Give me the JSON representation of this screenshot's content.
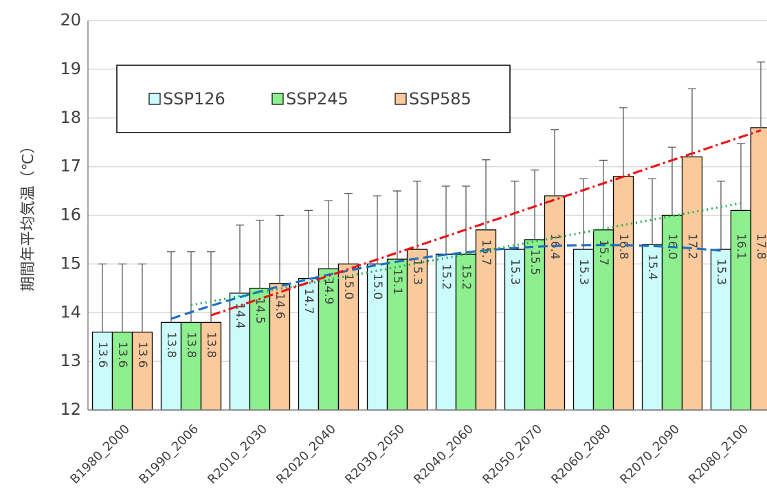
{
  "chart_data": {
    "type": "bar",
    "y_axis_label": "期間年平均気温（℃）",
    "categories": [
      "B1980_2000",
      "B1990_2006",
      "R2010_2030",
      "R2020_2040",
      "R2030_2050",
      "R2040_2060",
      "R2050_2070",
      "R2060_2080",
      "R2070_2090",
      "R2080_2100"
    ],
    "series": [
      {
        "name": "SSP126",
        "color": "#ccfbfc",
        "values": [
          13.6,
          13.8,
          14.4,
          14.7,
          15.0,
          15.2,
          15.3,
          15.3,
          15.4,
          15.3
        ],
        "value_labels": [
          "13.6",
          "13.8",
          "14.4",
          "14.7",
          "15.0",
          "15.2",
          "15.3",
          "15.3",
          "15.4",
          "15.3"
        ],
        "errors": [
          1.4,
          1.45,
          1.4,
          1.4,
          1.4,
          1.4,
          1.4,
          1.45,
          1.35,
          1.4
        ],
        "trendline": {
          "kind": "poly2",
          "color": "#1f6fc0",
          "dash": "14 7"
        }
      },
      {
        "name": "SSP245",
        "color": "#8def8d",
        "values": [
          13.6,
          13.8,
          14.5,
          14.9,
          15.1,
          15.2,
          15.5,
          15.7,
          16.0,
          16.1
        ],
        "value_labels": [
          "13.6",
          "13.8",
          "14.5",
          "14.9",
          "15.1",
          "15.2",
          "15.5",
          "15.7",
          "16.0",
          "16.1"
        ],
        "errors": [
          1.4,
          1.45,
          1.4,
          1.4,
          1.4,
          1.4,
          1.43,
          1.43,
          1.4,
          1.37
        ],
        "trendline": {
          "kind": "linear",
          "color": "#22b050",
          "dash": "2 5"
        }
      },
      {
        "name": "SSP585",
        "color": "#fac99c",
        "values": [
          13.6,
          13.8,
          14.6,
          15.0,
          15.3,
          15.7,
          16.4,
          16.8,
          17.2,
          17.8
        ],
        "value_labels": [
          "13.6",
          "13.8",
          "14.6",
          "15.0",
          "15.3",
          "15.7",
          "16.4",
          "16.8",
          "17.2",
          "17.8"
        ],
        "errors": [
          1.4,
          1.45,
          1.4,
          1.45,
          1.4,
          1.44,
          1.36,
          1.41,
          1.4,
          1.35
        ],
        "trendline": {
          "kind": "poly2",
          "color": "#e8151b",
          "dash": "14 5 3 5"
        }
      }
    ],
    "ylim": [
      12,
      20
    ],
    "yticks": [
      12,
      13,
      14,
      15,
      16,
      17,
      18,
      19,
      20
    ],
    "grid": true
  }
}
